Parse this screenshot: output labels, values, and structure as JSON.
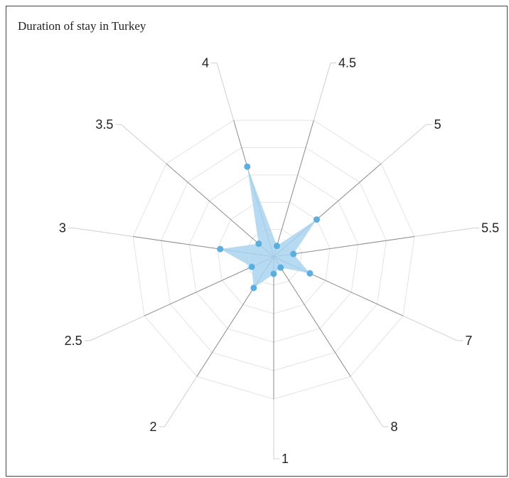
{
  "chart_data": {
    "type": "radar",
    "title": "Duration of stay in Turkey",
    "categories": [
      "1",
      "2",
      "2.5",
      "3",
      "3.5",
      "4",
      "4.5",
      "5",
      "5.5",
      "7",
      "8"
    ],
    "series": [
      {
        "values": [
          0.12,
          0.26,
          0.17,
          0.38,
          0.14,
          0.66,
          0.08,
          0.4,
          0.14,
          0.28,
          0.09
        ],
        "color": "#5aaee0",
        "fill": "#a8d4ee"
      }
    ],
    "rmax": 1.0,
    "rings": 5,
    "grid": true
  }
}
